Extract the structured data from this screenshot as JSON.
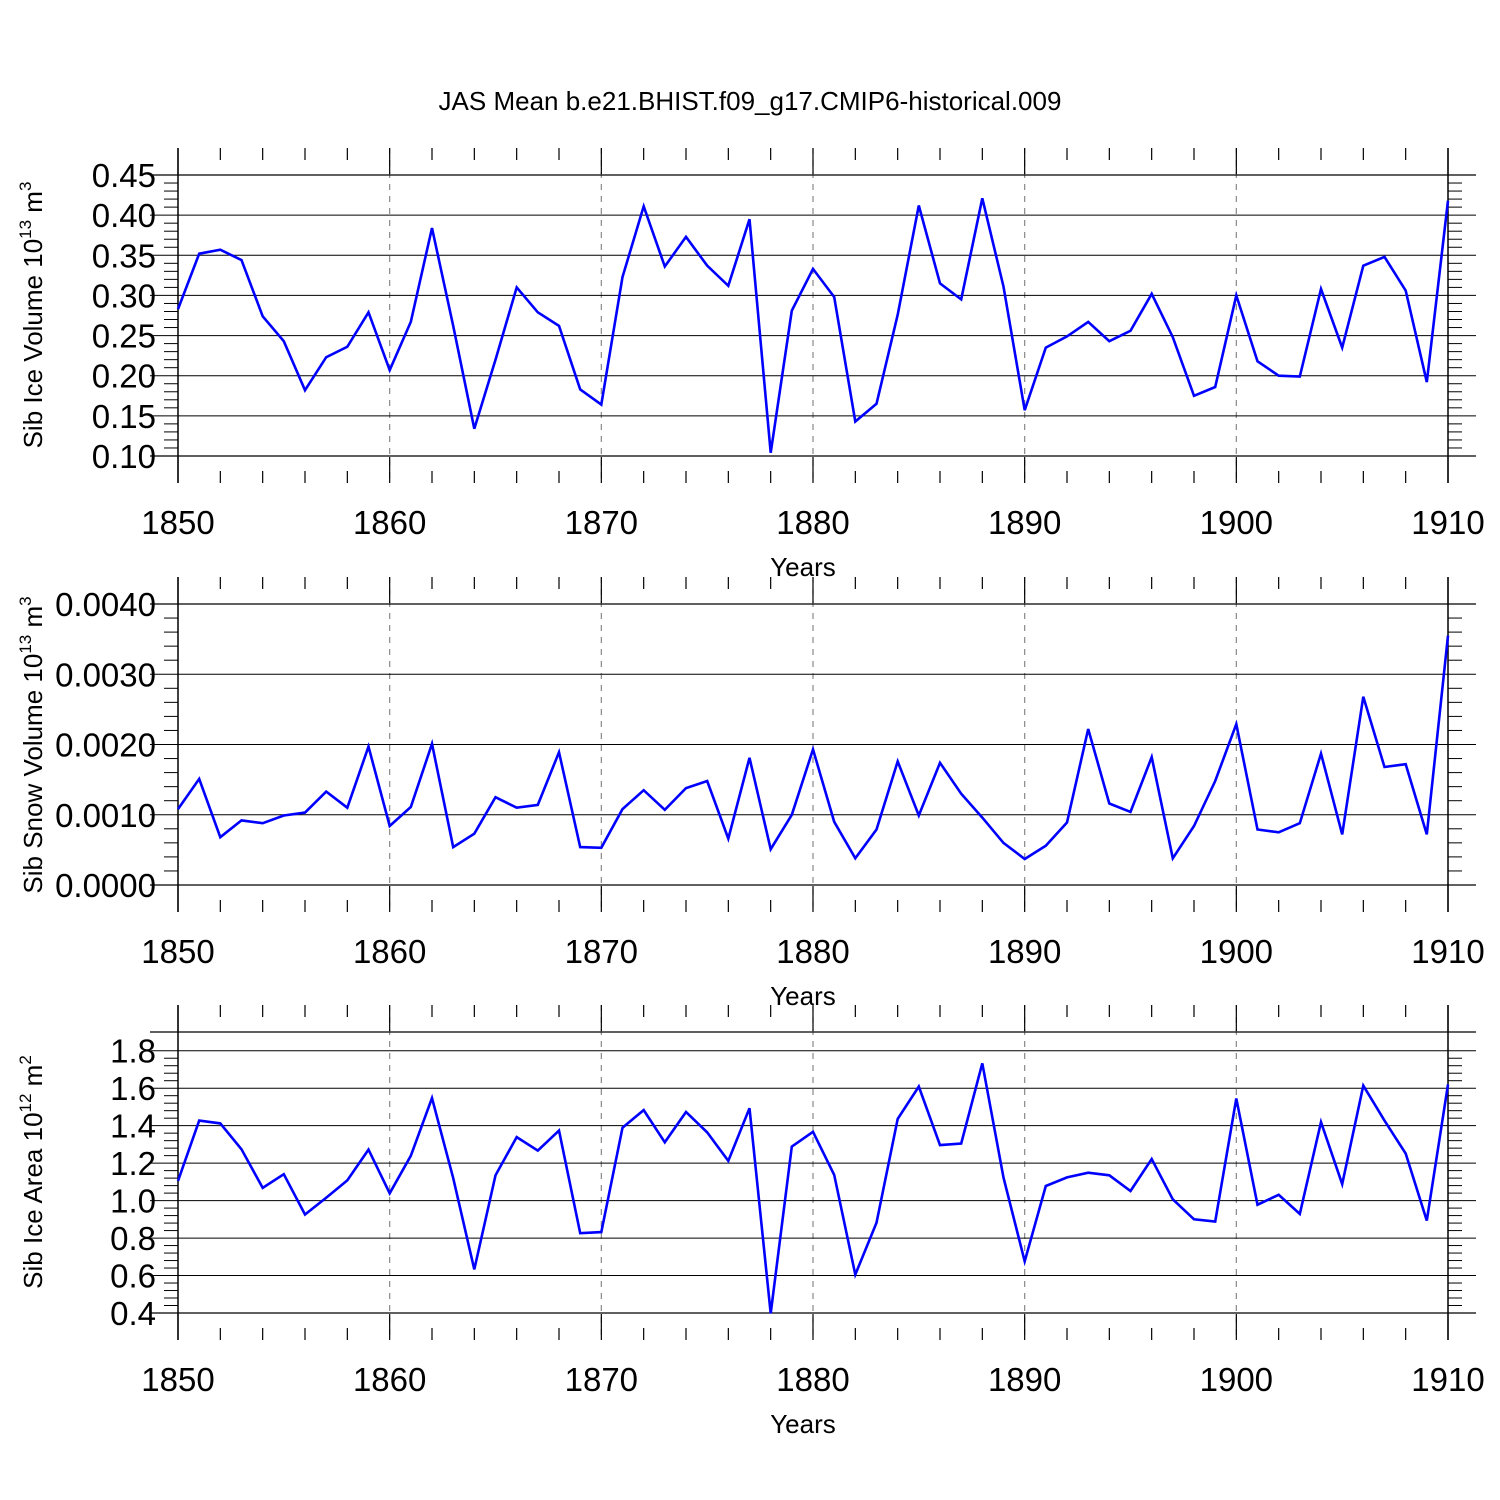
{
  "title": "JAS Mean b.e21.BHIST.f09_g17.CMIP6-historical.009",
  "chart_data": [
    {
      "type": "line",
      "title": "",
      "xlabel": "Years",
      "ylabel": "Sib Ice Volume 10",
      "ylabel_exp": "13",
      "ylabel_unit": " m",
      "ylabel_unit_exp": "3",
      "xlim": [
        1850,
        1910
      ],
      "ylim": [
        0.1,
        0.45
      ],
      "yticks": [
        0.1,
        0.15,
        0.2,
        0.25,
        0.3,
        0.35,
        0.4,
        0.45
      ],
      "ytick_labels": [
        "0.10",
        "0.15",
        "0.20",
        "0.25",
        "0.30",
        "0.35",
        "0.40",
        "0.45"
      ],
      "xticks": [
        1850,
        1860,
        1870,
        1880,
        1890,
        1900,
        1910
      ],
      "xtick_labels": [
        "1850",
        "1860",
        "1870",
        "1880",
        "1890",
        "1900",
        "1910"
      ],
      "grid": "vertical dashed at decades",
      "color": "#0000ff",
      "x_start": 1850,
      "values": [
        0.283,
        0.352,
        0.357,
        0.344,
        0.274,
        0.243,
        0.182,
        0.223,
        0.236,
        0.279,
        0.207,
        0.267,
        0.384,
        0.262,
        0.134,
        0.22,
        0.31,
        0.279,
        0.262,
        0.183,
        0.164,
        0.323,
        0.411,
        0.336,
        0.373,
        0.337,
        0.312,
        0.395,
        0.104,
        0.281,
        0.333,
        0.298,
        0.143,
        0.165,
        0.276,
        0.412,
        0.315,
        0.295,
        0.421,
        0.311,
        0.157,
        0.235,
        0.249,
        0.267,
        0.243,
        0.256,
        0.302,
        0.248,
        0.175,
        0.186,
        0.3,
        0.218,
        0.2,
        0.199,
        0.308,
        0.235,
        0.337,
        0.348,
        0.306,
        0.192,
        0.418
      ]
    },
    {
      "type": "line",
      "title": "",
      "xlabel": "Years",
      "ylabel": "Sib Snow Volume 10",
      "ylabel_exp": "13",
      "ylabel_unit": " m",
      "ylabel_unit_exp": "3",
      "xlim": [
        1850,
        1910
      ],
      "ylim": [
        0.0,
        0.004
      ],
      "yticks": [
        0.0,
        0.001,
        0.002,
        0.003,
        0.004
      ],
      "ytick_labels": [
        "0.0000",
        "0.0010",
        "0.0020",
        "0.0030",
        "0.0040"
      ],
      "xticks": [
        1850,
        1860,
        1870,
        1880,
        1890,
        1900,
        1910
      ],
      "xtick_labels": [
        "1850",
        "1860",
        "1870",
        "1880",
        "1890",
        "1900",
        "1910"
      ],
      "grid": "vertical dashed at decades",
      "color": "#0000ff",
      "x_start": 1850,
      "values": [
        0.00108,
        0.00151,
        0.00068,
        0.00092,
        0.00088,
        0.00099,
        0.00103,
        0.00133,
        0.0011,
        0.00197,
        0.00084,
        0.00111,
        0.00201,
        0.00054,
        0.00073,
        0.00125,
        0.0011,
        0.00114,
        0.00189,
        0.00054,
        0.00053,
        0.00108,
        0.00135,
        0.00107,
        0.00138,
        0.00148,
        0.00066,
        0.00181,
        0.00051,
        0.001,
        0.00193,
        0.0009,
        0.00038,
        0.00079,
        0.00176,
        0.00099,
        0.00174,
        0.0013,
        0.00096,
        0.0006,
        0.00037,
        0.00056,
        0.00089,
        0.00222,
        0.00116,
        0.00104,
        0.00182,
        0.00038,
        0.00084,
        0.00148,
        0.00229,
        0.00079,
        0.00075,
        0.00088,
        0.00187,
        0.00072,
        0.00268,
        0.00168,
        0.00172,
        0.00072,
        0.00355
      ]
    },
    {
      "type": "line",
      "title": "",
      "xlabel": "Years",
      "ylabel": "Sib Ice Area 10",
      "ylabel_exp": "12",
      "ylabel_unit": " m",
      "ylabel_unit_exp": "2",
      "xlim": [
        1850,
        1910
      ],
      "ylim": [
        0.4,
        1.9
      ],
      "yticks": [
        0.4,
        0.6,
        0.8,
        1.0,
        1.2,
        1.4,
        1.6,
        1.8
      ],
      "ytick_labels": [
        "0.4",
        "0.6",
        "0.8",
        "1.0",
        "1.2",
        "1.4",
        "1.6",
        "1.8"
      ],
      "xticks": [
        1850,
        1860,
        1870,
        1880,
        1890,
        1900,
        1910
      ],
      "xtick_labels": [
        "1850",
        "1860",
        "1870",
        "1880",
        "1890",
        "1900",
        "1910"
      ],
      "grid": "vertical dashed at decades",
      "color": "#0000ff",
      "x_start": 1850,
      "values": [
        1.105,
        1.427,
        1.412,
        1.274,
        1.068,
        1.141,
        0.926,
        1.015,
        1.108,
        1.272,
        1.039,
        1.239,
        1.547,
        1.12,
        0.633,
        1.135,
        1.339,
        1.267,
        1.374,
        0.826,
        0.832,
        1.389,
        1.483,
        1.311,
        1.473,
        1.364,
        1.212,
        1.493,
        0.398,
        1.288,
        1.367,
        1.137,
        0.605,
        0.882,
        1.436,
        1.609,
        1.296,
        1.305,
        1.733,
        1.123,
        0.676,
        1.078,
        1.124,
        1.149,
        1.135,
        1.051,
        1.222,
        1.007,
        0.9,
        0.888,
        1.545,
        0.978,
        1.031,
        0.929,
        1.419,
        1.088,
        1.614,
        1.427,
        1.251,
        0.893,
        1.62
      ]
    }
  ]
}
